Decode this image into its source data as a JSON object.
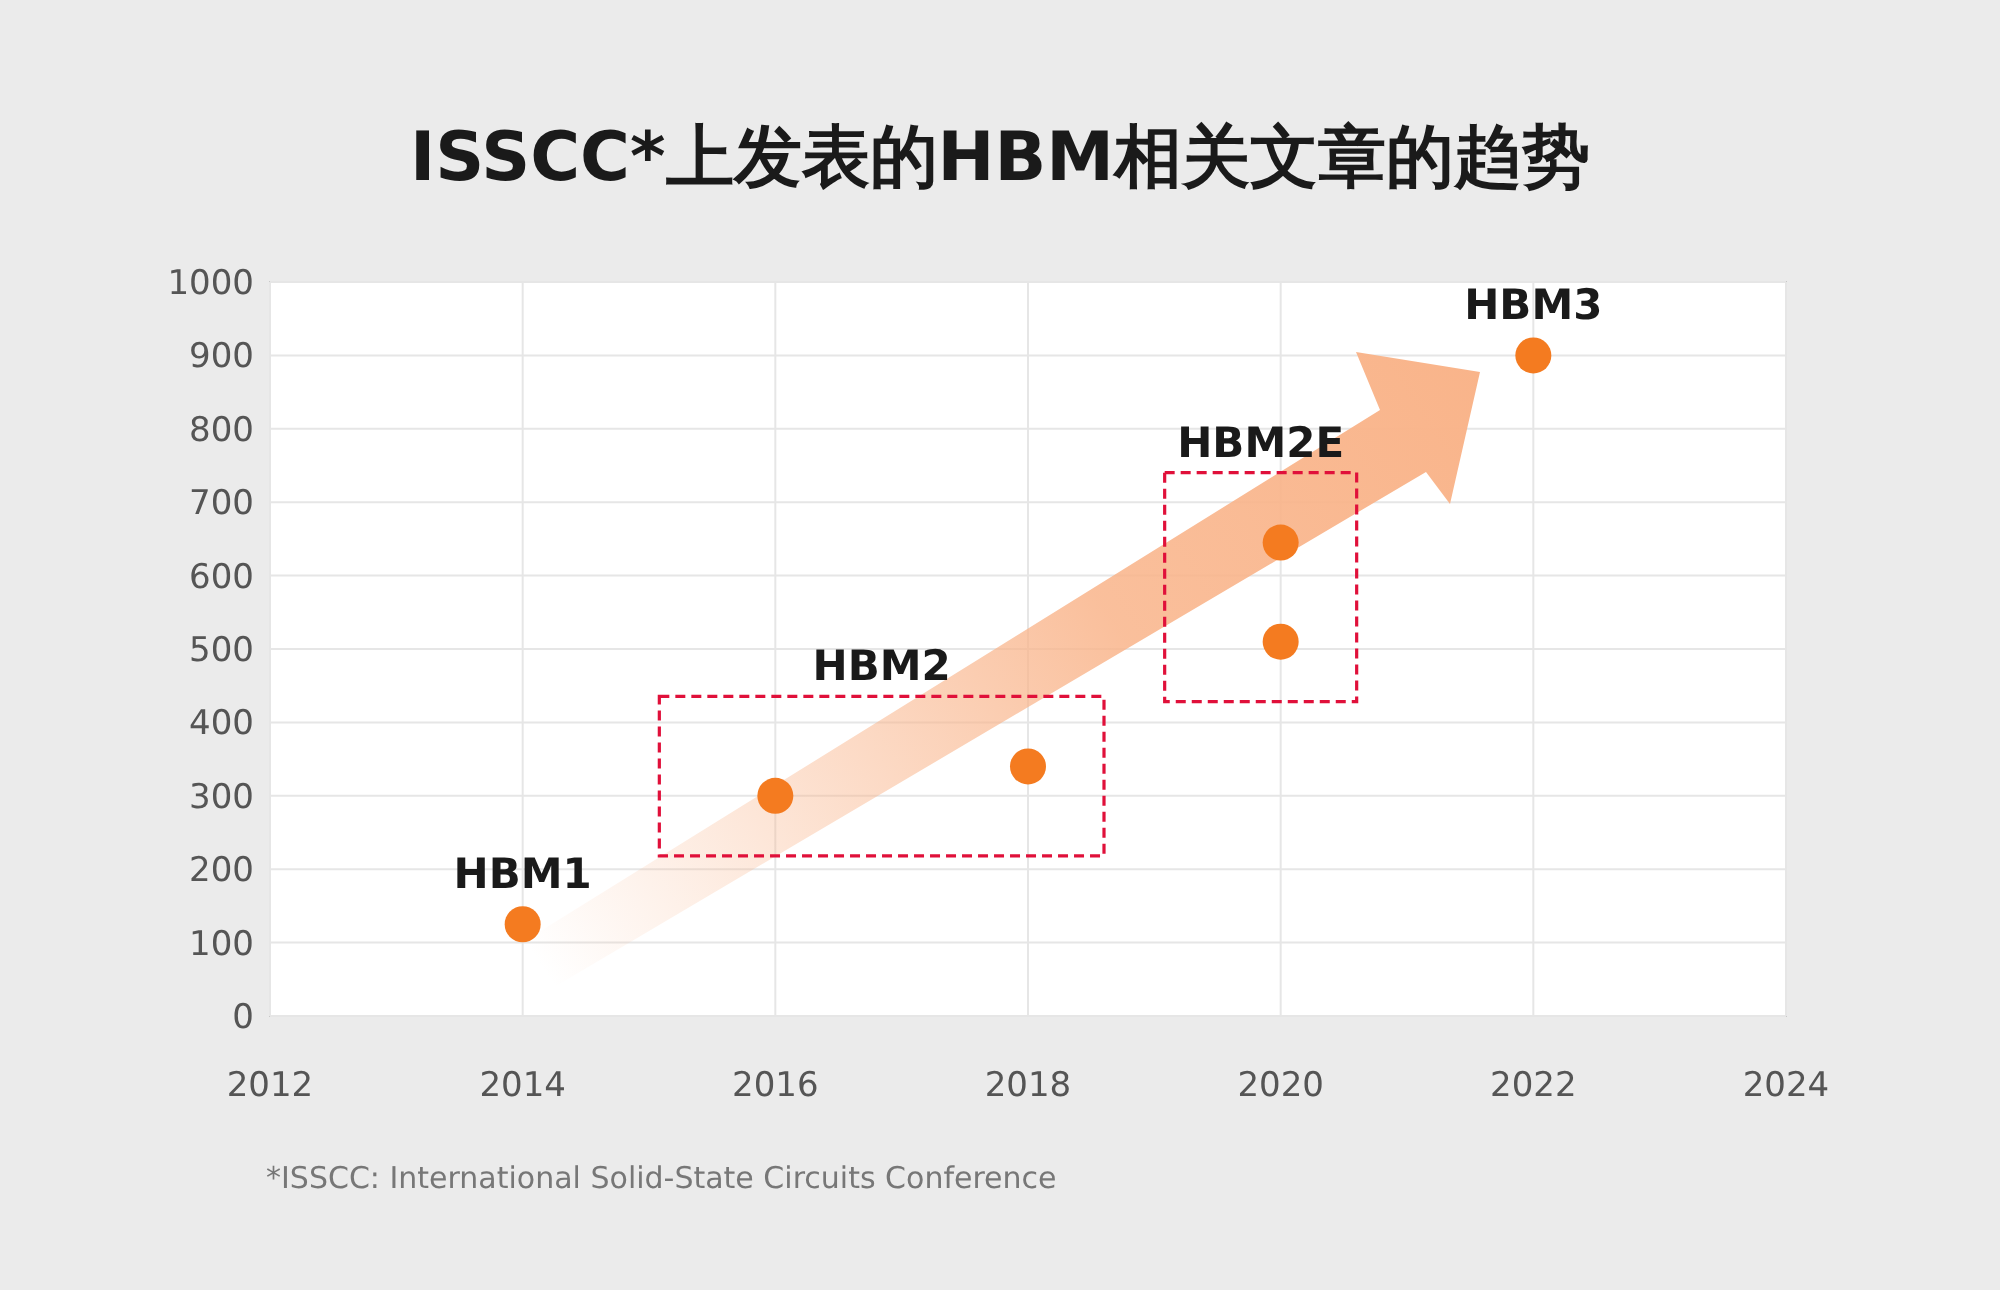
{
  "chart_data": {
    "type": "scatter",
    "title": "ISSCC*上发表的HBM相关文章的趋势",
    "x": [
      2014,
      2016,
      2018,
      2020,
      2020,
      2022
    ],
    "series": [
      {
        "color": "#f47b20",
        "values": [
          125,
          300,
          340,
          510,
          645,
          900
        ]
      }
    ],
    "xlim": [
      2012,
      2024
    ],
    "xticks": [
      2012,
      2014,
      2016,
      2018,
      2020,
      2022,
      2024
    ],
    "ylim": [
      0,
      1000
    ],
    "yticks": [
      0,
      100,
      200,
      300,
      400,
      500,
      600,
      700,
      800,
      900,
      1000
    ],
    "grid": true,
    "marker": "circle",
    "annotations": [
      {
        "text": "HBM1",
        "x": 2014,
        "y": 125
      },
      {
        "text": "HBM2",
        "x": 2016,
        "y": 300
      },
      {
        "text": "HBM2E",
        "x": 2020,
        "y": 645
      },
      {
        "text": "HBM3",
        "x": 2022,
        "y": 900
      },
      "*ISSCC: International Solid-State Circuits Conference"
    ]
  }
}
